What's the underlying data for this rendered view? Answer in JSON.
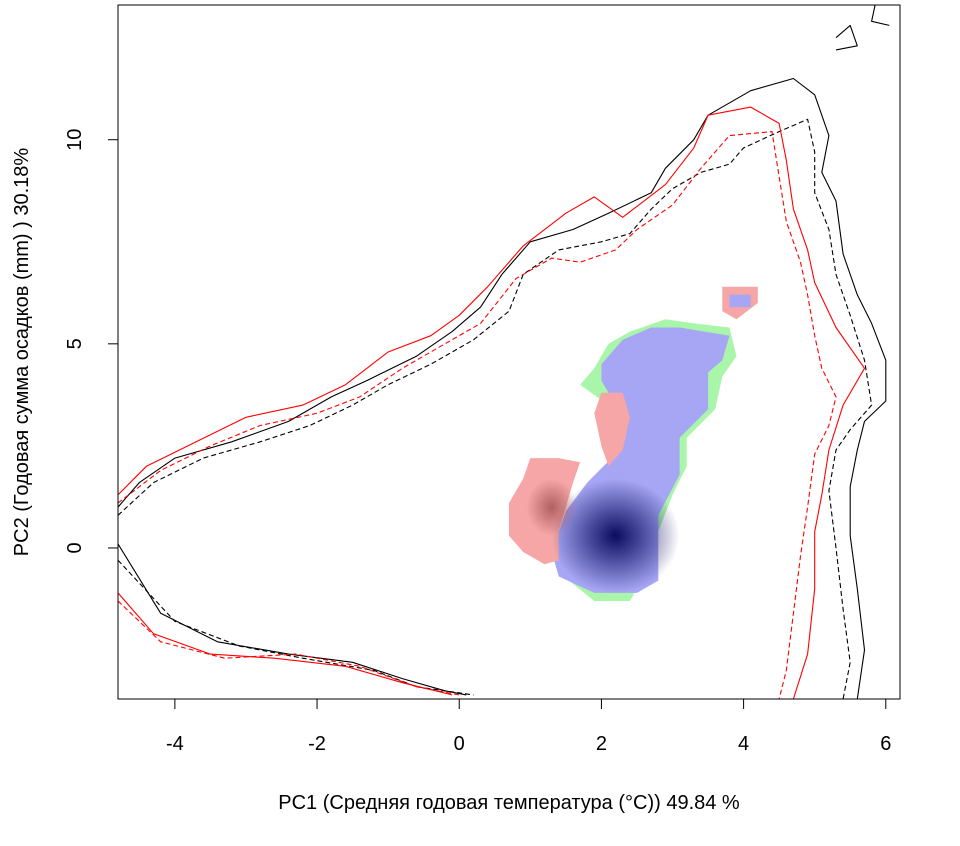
{
  "chart_data": {
    "type": "contour-overlay",
    "xlabel": "PC1 (Средняя годовая температура (°C)) 49.84 %",
    "ylabel": "PC2 (Годовая сумма осадков  (mm) ) 30.18%",
    "xlim": [
      -4.8,
      6.2
    ],
    "ylim": [
      -3.7,
      13.3
    ],
    "x_ticks": [
      -4,
      -2,
      0,
      2,
      4,
      6
    ],
    "y_ticks": [
      0,
      5,
      10
    ],
    "grid": false,
    "colors": {
      "contour_black": "#000000",
      "contour_red": "#ff0000",
      "blue_region": "#a6a6f4",
      "blue_core": "#0a0a60",
      "red_region": "#f6a6a6",
      "red_core": "#b06060",
      "green_region": "#a9f5a9"
    },
    "contours": [
      {
        "color": "#000000",
        "dash": "solid",
        "points": [
          [
            -4.8,
            1.0
          ],
          [
            -4.5,
            1.6
          ],
          [
            -4.0,
            2.2
          ],
          [
            -3.2,
            2.6
          ],
          [
            -2.4,
            3.1
          ],
          [
            -1.8,
            3.7
          ],
          [
            -1.3,
            4.1
          ],
          [
            -0.6,
            4.7
          ],
          [
            -0.1,
            5.3
          ],
          [
            0.3,
            5.9
          ],
          [
            0.6,
            6.7
          ],
          [
            1.0,
            7.5
          ],
          [
            1.6,
            7.8
          ],
          [
            2.1,
            8.2
          ],
          [
            2.7,
            8.7
          ],
          [
            2.9,
            9.3
          ],
          [
            3.3,
            10.0
          ],
          [
            3.5,
            10.6
          ],
          [
            4.1,
            11.2
          ],
          [
            4.7,
            11.5
          ],
          [
            5.0,
            11.1
          ],
          [
            5.2,
            10.1
          ],
          [
            5.1,
            9.2
          ],
          [
            5.3,
            8.5
          ],
          [
            5.4,
            7.2
          ],
          [
            5.6,
            6.2
          ],
          [
            5.8,
            5.5
          ],
          [
            6.0,
            4.6
          ],
          [
            6.0,
            3.6
          ],
          [
            5.7,
            3.1
          ],
          [
            5.6,
            2.4
          ],
          [
            5.5,
            1.5
          ],
          [
            5.5,
            0.3
          ],
          [
            5.6,
            -1.0
          ],
          [
            5.7,
            -2.5
          ],
          [
            5.6,
            -3.7
          ]
        ]
      },
      {
        "color": "#000000",
        "dash": "dashed",
        "points": [
          [
            -4.8,
            0.8
          ],
          [
            -4.3,
            1.6
          ],
          [
            -3.6,
            2.2
          ],
          [
            -2.8,
            2.6
          ],
          [
            -2.1,
            3.0
          ],
          [
            -1.5,
            3.5
          ],
          [
            -1.0,
            4.0
          ],
          [
            -0.4,
            4.5
          ],
          [
            0.2,
            5.1
          ],
          [
            0.7,
            5.8
          ],
          [
            0.9,
            6.7
          ],
          [
            1.4,
            7.3
          ],
          [
            2.0,
            7.5
          ],
          [
            2.4,
            7.7
          ],
          [
            2.7,
            8.3
          ],
          [
            3.0,
            8.8
          ],
          [
            3.4,
            9.2
          ],
          [
            3.8,
            9.4
          ],
          [
            4.0,
            9.8
          ],
          [
            4.5,
            10.2
          ],
          [
            4.9,
            10.5
          ],
          [
            5.0,
            9.7
          ],
          [
            5.0,
            8.7
          ],
          [
            5.2,
            7.8
          ],
          [
            5.3,
            6.7
          ],
          [
            5.5,
            5.7
          ],
          [
            5.7,
            4.6
          ],
          [
            5.8,
            3.5
          ],
          [
            5.5,
            2.9
          ],
          [
            5.3,
            2.4
          ],
          [
            5.2,
            1.4
          ],
          [
            5.3,
            0.0
          ],
          [
            5.4,
            -1.5
          ],
          [
            5.5,
            -2.8
          ],
          [
            5.4,
            -3.7
          ]
        ]
      },
      {
        "color": "#ff0000",
        "dash": "solid",
        "points": [
          [
            -4.8,
            1.3
          ],
          [
            -4.4,
            2.0
          ],
          [
            -3.7,
            2.6
          ],
          [
            -3.0,
            3.2
          ],
          [
            -2.2,
            3.5
          ],
          [
            -1.6,
            4.0
          ],
          [
            -1.0,
            4.8
          ],
          [
            -0.4,
            5.2
          ],
          [
            0.0,
            5.7
          ],
          [
            0.4,
            6.4
          ],
          [
            0.9,
            7.4
          ],
          [
            1.5,
            8.2
          ],
          [
            1.9,
            8.6
          ],
          [
            2.3,
            8.1
          ],
          [
            2.9,
            8.9
          ],
          [
            3.3,
            9.8
          ],
          [
            3.5,
            10.6
          ],
          [
            4.1,
            10.8
          ],
          [
            4.5,
            10.4
          ],
          [
            4.6,
            9.5
          ],
          [
            4.7,
            8.3
          ],
          [
            4.9,
            7.3
          ],
          [
            5.0,
            6.5
          ],
          [
            5.3,
            5.4
          ],
          [
            5.7,
            4.4
          ],
          [
            5.4,
            3.5
          ],
          [
            5.2,
            2.4
          ],
          [
            5.1,
            1.3
          ],
          [
            5.0,
            0.4
          ],
          [
            5.0,
            -1.0
          ],
          [
            4.9,
            -2.6
          ],
          [
            4.7,
            -3.7
          ]
        ]
      },
      {
        "color": "#ff0000",
        "dash": "dashed",
        "points": [
          [
            -4.8,
            1.1
          ],
          [
            -4.2,
            1.9
          ],
          [
            -3.5,
            2.5
          ],
          [
            -2.8,
            3.0
          ],
          [
            -2.0,
            3.3
          ],
          [
            -1.4,
            3.7
          ],
          [
            -0.8,
            4.4
          ],
          [
            -0.2,
            5.0
          ],
          [
            0.3,
            5.5
          ],
          [
            0.8,
            6.6
          ],
          [
            1.3,
            7.1
          ],
          [
            1.7,
            7.0
          ],
          [
            2.2,
            7.3
          ],
          [
            2.5,
            7.8
          ],
          [
            3.0,
            8.4
          ],
          [
            3.4,
            9.3
          ],
          [
            3.8,
            10.1
          ],
          [
            4.4,
            10.2
          ],
          [
            4.5,
            9.1
          ],
          [
            4.6,
            8.0
          ],
          [
            4.8,
            7.0
          ],
          [
            4.9,
            6.2
          ],
          [
            5.0,
            5.2
          ],
          [
            5.1,
            4.4
          ],
          [
            5.3,
            3.7
          ],
          [
            5.2,
            3.0
          ],
          [
            5.0,
            2.3
          ],
          [
            4.9,
            1.0
          ],
          [
            4.8,
            -0.2
          ],
          [
            4.7,
            -1.6
          ],
          [
            4.6,
            -3.0
          ],
          [
            4.5,
            -3.7
          ]
        ]
      },
      {
        "color": "#000000",
        "dash": "solid",
        "points": [
          [
            -4.8,
            0.1
          ],
          [
            -4.2,
            -1.6
          ],
          [
            -3.4,
            -2.3
          ],
          [
            -2.4,
            -2.6
          ],
          [
            -1.5,
            -2.8
          ],
          [
            -0.8,
            -3.2
          ],
          [
            -0.2,
            -3.5
          ],
          [
            0.1,
            -3.6
          ]
        ]
      },
      {
        "color": "#000000",
        "dash": "dashed",
        "points": [
          [
            -4.8,
            -0.3
          ],
          [
            -4.0,
            -1.8
          ],
          [
            -3.1,
            -2.4
          ],
          [
            -2.2,
            -2.7
          ],
          [
            -1.2,
            -3.0
          ],
          [
            -0.6,
            -3.4
          ],
          [
            0.2,
            -3.6
          ]
        ]
      },
      {
        "color": "#ff0000",
        "dash": "solid",
        "points": [
          [
            -4.8,
            -1.1
          ],
          [
            -4.3,
            -2.1
          ],
          [
            -3.5,
            -2.6
          ],
          [
            -2.6,
            -2.7
          ],
          [
            -1.6,
            -2.9
          ],
          [
            -0.8,
            -3.3
          ],
          [
            -0.1,
            -3.6
          ]
        ]
      },
      {
        "color": "#ff0000",
        "dash": "dashed",
        "points": [
          [
            -4.8,
            -1.3
          ],
          [
            -4.2,
            -2.3
          ],
          [
            -3.3,
            -2.7
          ],
          [
            -2.3,
            -2.6
          ],
          [
            -1.4,
            -2.9
          ],
          [
            -0.6,
            -3.4
          ],
          [
            0.0,
            -3.6
          ]
        ]
      },
      {
        "color": "#000000",
        "dash": "solid",
        "points": [
          [
            5.3,
            12.5
          ],
          [
            5.5,
            12.8
          ],
          [
            5.6,
            12.3
          ],
          [
            5.3,
            12.2
          ]
        ]
      },
      {
        "color": "#000000",
        "dash": "solid",
        "points": [
          [
            5.85,
            13.3
          ],
          [
            5.8,
            12.9
          ],
          [
            6.05,
            12.8
          ]
        ]
      }
    ],
    "regions": [
      {
        "color": "#a9f5a9",
        "points": [
          [
            1.9,
            4.4
          ],
          [
            2.1,
            5.0
          ],
          [
            2.4,
            5.3
          ],
          [
            2.9,
            5.6
          ],
          [
            3.3,
            5.5
          ],
          [
            3.8,
            5.4
          ],
          [
            3.9,
            4.7
          ],
          [
            3.7,
            4.2
          ],
          [
            3.6,
            3.4
          ],
          [
            3.2,
            2.7
          ],
          [
            3.2,
            2.0
          ],
          [
            3.0,
            1.3
          ],
          [
            2.8,
            0.4
          ],
          [
            2.6,
            -0.7
          ],
          [
            2.4,
            -1.3
          ],
          [
            1.9,
            -1.3
          ],
          [
            1.4,
            -0.6
          ],
          [
            1.6,
            0.6
          ],
          [
            2.0,
            1.6
          ],
          [
            2.3,
            2.5
          ],
          [
            2.1,
            3.5
          ],
          [
            1.7,
            4.0
          ]
        ]
      },
      {
        "color": "#a6a6f4",
        "points": [
          [
            2.0,
            4.5
          ],
          [
            2.3,
            5.1
          ],
          [
            2.7,
            5.4
          ],
          [
            3.1,
            5.4
          ],
          [
            3.8,
            5.2
          ],
          [
            3.7,
            4.6
          ],
          [
            3.5,
            4.3
          ],
          [
            3.5,
            3.4
          ],
          [
            3.1,
            2.7
          ],
          [
            3.1,
            1.8
          ],
          [
            2.8,
            0.8
          ],
          [
            2.8,
            -0.2
          ],
          [
            2.8,
            -0.8
          ],
          [
            2.5,
            -1.1
          ],
          [
            1.9,
            -1.1
          ],
          [
            1.4,
            -0.7
          ],
          [
            1.3,
            -0.1
          ],
          [
            1.5,
            0.9
          ],
          [
            1.8,
            1.6
          ],
          [
            2.2,
            2.3
          ],
          [
            2.3,
            3.2
          ],
          [
            2.1,
            3.8
          ],
          [
            2.0,
            4.1
          ]
        ]
      },
      {
        "color": "#f6a6a6",
        "points": [
          [
            1.0,
            2.2
          ],
          [
            1.4,
            2.2
          ],
          [
            1.7,
            2.1
          ],
          [
            1.6,
            1.6
          ],
          [
            1.5,
            1.0
          ],
          [
            1.4,
            0.4
          ],
          [
            1.4,
            -0.3
          ],
          [
            1.2,
            -0.4
          ],
          [
            0.9,
            -0.1
          ],
          [
            0.7,
            0.3
          ],
          [
            0.7,
            1.1
          ],
          [
            0.9,
            1.7
          ]
        ]
      },
      {
        "color": "#f6a6a6",
        "points": [
          [
            2.0,
            3.8
          ],
          [
            2.3,
            3.8
          ],
          [
            2.4,
            3.2
          ],
          [
            2.3,
            2.4
          ],
          [
            2.1,
            2.0
          ],
          [
            2.0,
            2.5
          ],
          [
            1.9,
            3.3
          ]
        ]
      },
      {
        "color": "#f6a6a6",
        "points": [
          [
            3.7,
            6.4
          ],
          [
            4.2,
            6.4
          ],
          [
            4.2,
            6.0
          ],
          [
            3.9,
            5.6
          ],
          [
            3.7,
            5.8
          ]
        ]
      },
      {
        "color": "#a6a6f4",
        "points": [
          [
            3.8,
            6.2
          ],
          [
            4.1,
            6.2
          ],
          [
            4.1,
            5.9
          ],
          [
            3.8,
            5.9
          ]
        ]
      }
    ],
    "hotspots": [
      {
        "color": "#0a0a60",
        "center": [
          2.2,
          0.3
        ],
        "radius": [
          0.9,
          1.4
        ]
      },
      {
        "color": "#b06060",
        "center": [
          1.3,
          1.0
        ],
        "radius": [
          0.35,
          0.7
        ]
      }
    ]
  }
}
